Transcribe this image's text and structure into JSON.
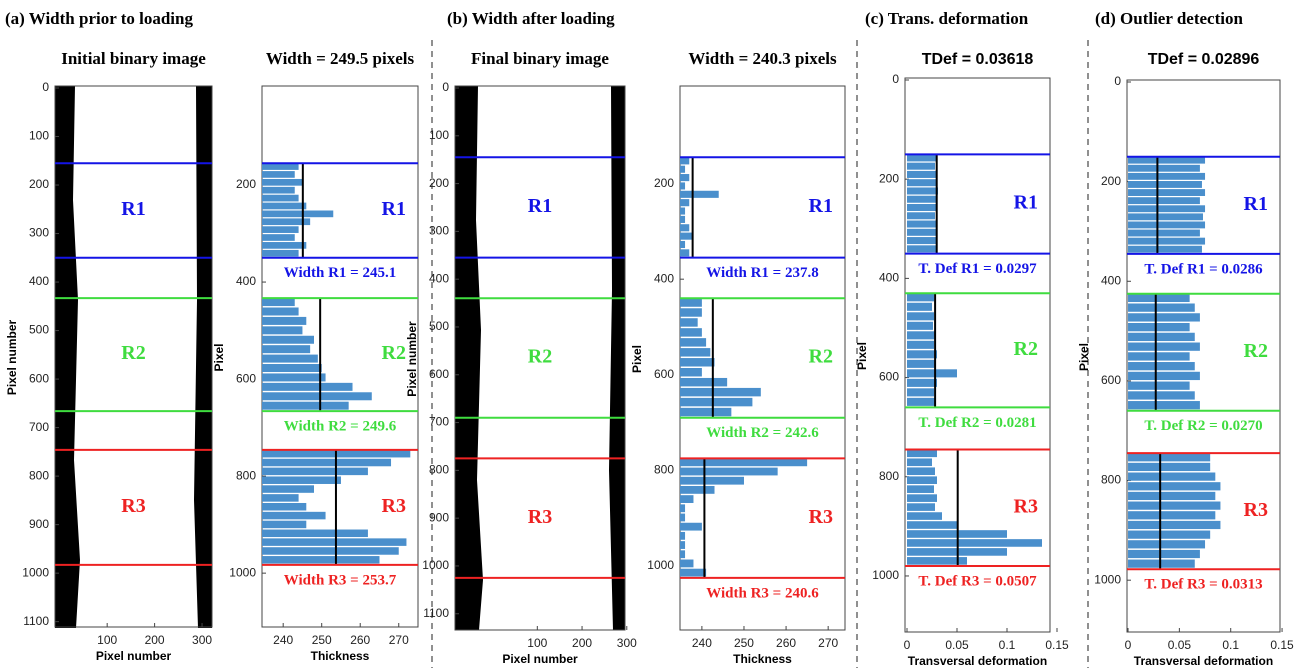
{
  "panels": [
    {
      "title": "(a) Width prior to loading",
      "plots": [
        {
          "kind": "image",
          "heading": "Initial binary image",
          "ylabel": "Pixel number",
          "xlabel": "Pixel number",
          "ylim": [
            0,
            1111
          ],
          "yticks": [
            0,
            100,
            200,
            300,
            400,
            500,
            600,
            700,
            800,
            900,
            1000,
            1100
          ],
          "xlim": [
            -10,
            321
          ],
          "xticks": [
            100,
            200,
            300
          ]
        },
        {
          "kind": "hist",
          "heading": "Width = 249.5 pixels",
          "ylabel": "Pixel",
          "xlabel": "Thickness",
          "ylim": [
            0,
            1111
          ],
          "yticks": [
            200,
            400,
            600,
            800,
            1000
          ],
          "xlim": [
            234.5,
            275
          ],
          "xticks": [
            240,
            250,
            260,
            270
          ]
        }
      ],
      "regions": [
        {
          "name": "R1",
          "color": "#1414e6",
          "bounds": [
            155,
            350
          ],
          "label": "Width R1 = 245.1",
          "mean": 245.1,
          "bars": [
            244,
            243,
            245,
            243,
            244,
            246,
            253,
            247,
            244,
            243,
            246,
            244
          ]
        },
        {
          "name": "R2",
          "color": "#3fdc3f",
          "bounds": [
            433,
            666
          ],
          "label": "Width R2 = 249.6",
          "mean": 249.6,
          "bars": [
            243,
            244,
            246,
            245,
            248,
            247,
            249,
            250,
            251,
            258,
            263,
            257
          ]
        },
        {
          "name": "R3",
          "color": "#ee2222",
          "bounds": [
            746,
            983
          ],
          "label": "Width R3 = 253.7",
          "mean": 253.7,
          "bars": [
            273,
            268,
            262,
            255,
            248,
            244,
            246,
            251,
            246,
            262,
            272,
            270,
            265
          ]
        }
      ]
    },
    {
      "title": "(b) Width after loading",
      "plots": [
        {
          "kind": "image",
          "heading": "Final binary image",
          "ylabel": "Pixel number",
          "xlabel": "Pixel number",
          "ylim": [
            0,
            1134
          ],
          "yticks": [
            0,
            100,
            200,
            300,
            400,
            500,
            600,
            700,
            800,
            900,
            1000,
            1100
          ],
          "xlim": [
            -84,
            296
          ],
          "xticks": [
            100,
            200,
            300
          ]
        },
        {
          "kind": "hist",
          "heading": "Width = 240.3 pixels",
          "ylabel": "Pixel",
          "xlabel": "Thickness",
          "ylim": [
            0,
            1134
          ],
          "yticks": [
            200,
            400,
            600,
            800,
            1000
          ],
          "xlim": [
            234.8,
            274
          ],
          "xticks": [
            240,
            250,
            260,
            270
          ]
        }
      ],
      "regions": [
        {
          "name": "R1",
          "color": "#1414e6",
          "bounds": [
            145,
            355
          ],
          "label": "Width R1 = 237.8",
          "mean": 237.8,
          "bars": [
            237,
            236,
            237,
            236,
            244,
            237,
            236,
            236,
            237,
            238,
            236,
            237
          ]
        },
        {
          "name": "R2",
          "color": "#3fdc3f",
          "bounds": [
            440,
            690
          ],
          "label": "Width R2 = 242.6",
          "mean": 242.6,
          "bars": [
            240,
            240,
            239,
            240,
            241,
            242,
            243,
            240,
            246,
            254,
            252,
            247
          ]
        },
        {
          "name": "R3",
          "color": "#ee2222",
          "bounds": [
            775,
            1025
          ],
          "label": "Width R3 = 240.6",
          "mean": 240.6,
          "bars": [
            265,
            258,
            250,
            243,
            238,
            236,
            236,
            240,
            236,
            236,
            236,
            238,
            241
          ]
        }
      ]
    },
    {
      "title": "(c) Trans. deformation",
      "plots": [
        {
          "kind": "hist",
          "heading": "TDef = 0.03618",
          "ylabel": "Pixel",
          "xlabel": "Transversal deformation",
          "ylim": [
            0,
            1113
          ],
          "yticks": [
            0,
            200,
            400,
            600,
            800,
            1000
          ],
          "xlim": [
            -0.002,
            0.143
          ],
          "xticks": [
            0,
            0.05,
            0.1,
            0.15
          ]
        }
      ],
      "regions": [
        {
          "name": "R1",
          "color": "#1414e6",
          "bounds": [
            150,
            350
          ],
          "label": "T. Def R1 = 0.0297",
          "mean": 0.0297,
          "bars": [
            0.03,
            0.028,
            0.03,
            0.029,
            0.031,
            0.03,
            0.029,
            0.028,
            0.03,
            0.03,
            0.029,
            0.03
          ]
        },
        {
          "name": "R2",
          "color": "#3fdc3f",
          "bounds": [
            430,
            660
          ],
          "label": "T. Def R2 = 0.0281",
          "mean": 0.0281,
          "bars": [
            0.027,
            0.025,
            0.027,
            0.026,
            0.028,
            0.027,
            0.03,
            0.028,
            0.05,
            0.03,
            0.027,
            0.028
          ]
        },
        {
          "name": "R3",
          "color": "#ee2222",
          "bounds": [
            745,
            980
          ],
          "label": "T. Def R3 = 0.0507",
          "mean": 0.0507,
          "bars": [
            0.03,
            0.025,
            0.028,
            0.03,
            0.027,
            0.03,
            0.028,
            0.035,
            0.05,
            0.1,
            0.135,
            0.1,
            0.06
          ]
        }
      ]
    },
    {
      "title": "(d) Outlier detection",
      "plots": [
        {
          "kind": "hist",
          "heading": "TDef = 0.02896",
          "ylabel": "Pixel",
          "xlabel": "Transversal deformation",
          "ylim": [
            0,
            1104
          ],
          "yticks": [
            0,
            200,
            400,
            600,
            800,
            1000
          ],
          "xlim": [
            -0.001,
            0.148
          ],
          "xticks": [
            0,
            0.05,
            0.1,
            0.15
          ]
        }
      ],
      "regions": [
        {
          "name": "R1",
          "color": "#1414e6",
          "bounds": [
            150,
            345
          ],
          "label": "T. Def R1 = 0.0286",
          "mean": 0.0286,
          "bars": [
            0.075,
            0.07,
            0.075,
            0.072,
            0.075,
            0.07,
            0.075,
            0.073,
            0.075,
            0.07,
            0.075,
            0.072
          ]
        },
        {
          "name": "R2",
          "color": "#3fdc3f",
          "bounds": [
            425,
            660
          ],
          "label": "T. Def R2 = 0.0270",
          "mean": 0.027,
          "bars": [
            0.06,
            0.065,
            0.07,
            0.06,
            0.065,
            0.07,
            0.06,
            0.065,
            0.07,
            0.06,
            0.065,
            0.07
          ]
        },
        {
          "name": "R3",
          "color": "#ee2222",
          "bounds": [
            745,
            978
          ],
          "label": "T. Def R3 = 0.0313",
          "mean": 0.0313,
          "bars": [
            0.08,
            0.08,
            0.085,
            0.09,
            0.085,
            0.09,
            0.085,
            0.09,
            0.08,
            0.075,
            0.07,
            0.065
          ]
        }
      ]
    }
  ]
}
